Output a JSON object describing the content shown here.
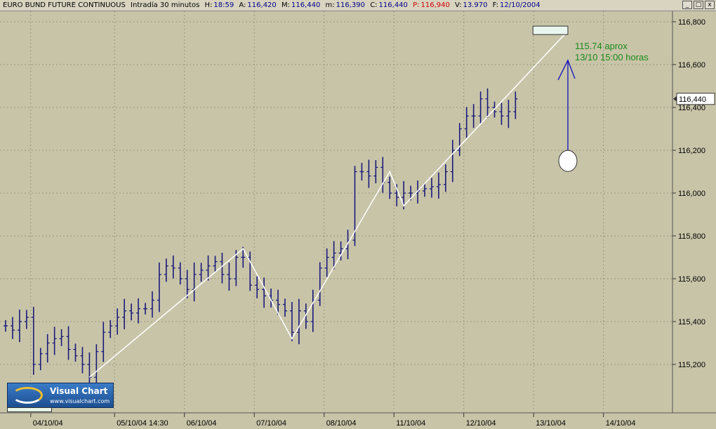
{
  "header": {
    "instrument": "EURO BUND FUTURE CONTINUOUS",
    "period": "Intradía 30 minutos",
    "h_label": "H:",
    "h_value": "18:59",
    "a_label": "A:",
    "a_value": "116,420",
    "m_label": "M:",
    "m_value": "116,440",
    "mn_label": "m:",
    "mn_value": "116,390",
    "c_label": "C:",
    "c_value": "116,440",
    "p_label": "P:",
    "p_value": "116,940",
    "v_label": "V:",
    "v_value": "13.970",
    "f_label": "F:",
    "f_value": "12/10/2004"
  },
  "window_buttons": [
    "_",
    "□",
    "x"
  ],
  "logo": {
    "brand": "Visual Chart",
    "site": "www.visualchart.com"
  },
  "colors": {
    "background": "#c8c4a8",
    "bars": "#1a1a7a",
    "trendline": "#ffffff",
    "arrow": "#1010c0",
    "annotation": "#1a8a1a",
    "grid": "#9c9880"
  },
  "chart_data": {
    "type": "bar",
    "title": "EURO BUND FUTURE CONTINUOUS",
    "ylim": [
      115.1,
      116.95
    ],
    "y_ticks": [
      "116,800",
      "116,600",
      "116,400",
      "116,200",
      "116,000",
      "115,800",
      "115,600",
      "115,400",
      "115,200"
    ],
    "y_tick_values": [
      116.8,
      116.6,
      116.4,
      116.2,
      116.0,
      115.8,
      115.6,
      115.4,
      115.2
    ],
    "x_labels": [
      "04/10/04",
      "05/10/04 14:30",
      "06/10/04",
      "07/10/04",
      "08/10/04",
      "11/10/04",
      "12/10/04",
      "13/10/04",
      "14/10/04"
    ],
    "x_label_index": [
      4,
      16,
      26,
      36,
      46,
      56,
      66,
      76,
      86
    ],
    "last_price_label": "116,440",
    "last_price": 116.44,
    "bars_count": 74,
    "closes": [
      115.38,
      115.36,
      115.4,
      115.42,
      115.2,
      115.25,
      115.3,
      115.32,
      115.33,
      115.27,
      115.24,
      115.2,
      115.14,
      115.26,
      115.35,
      115.38,
      115.42,
      115.45,
      115.44,
      115.46,
      115.46,
      115.5,
      115.62,
      115.66,
      115.65,
      115.6,
      115.55,
      115.62,
      115.64,
      115.66,
      115.68,
      115.62,
      115.6,
      115.7,
      115.7,
      115.57,
      115.55,
      115.52,
      115.5,
      115.48,
      115.45,
      115.35,
      115.45,
      115.4,
      115.5,
      115.65,
      115.7,
      115.72,
      115.74,
      115.78,
      116.1,
      116.1,
      116.08,
      116.12,
      116.05,
      116.0,
      115.98,
      116.0,
      116.0,
      116.01,
      116.02,
      116.03,
      116.04,
      116.1,
      116.2,
      116.3,
      116.36,
      116.36,
      116.44,
      116.4,
      116.38,
      116.36,
      116.38,
      116.44
    ],
    "zigzag": [
      {
        "i": 12,
        "y": 115.14
      },
      {
        "i": 34,
        "y": 115.74
      },
      {
        "i": 41,
        "y": 115.32
      },
      {
        "i": 55,
        "y": 116.1
      },
      {
        "i": 57,
        "y": 115.94
      },
      {
        "i": 80,
        "y": 116.74
      }
    ],
    "target_box": {
      "i_from": 75.5,
      "i_to": 80.5,
      "y": 116.76
    },
    "arrow": {
      "i": 80.5,
      "y_from": 116.18,
      "y_to": 116.62
    },
    "target_circle": {
      "i": 80.5,
      "y": 116.15
    },
    "annotation": [
      "115.74 aprox",
      "13/10 15:00 horas"
    ]
  }
}
